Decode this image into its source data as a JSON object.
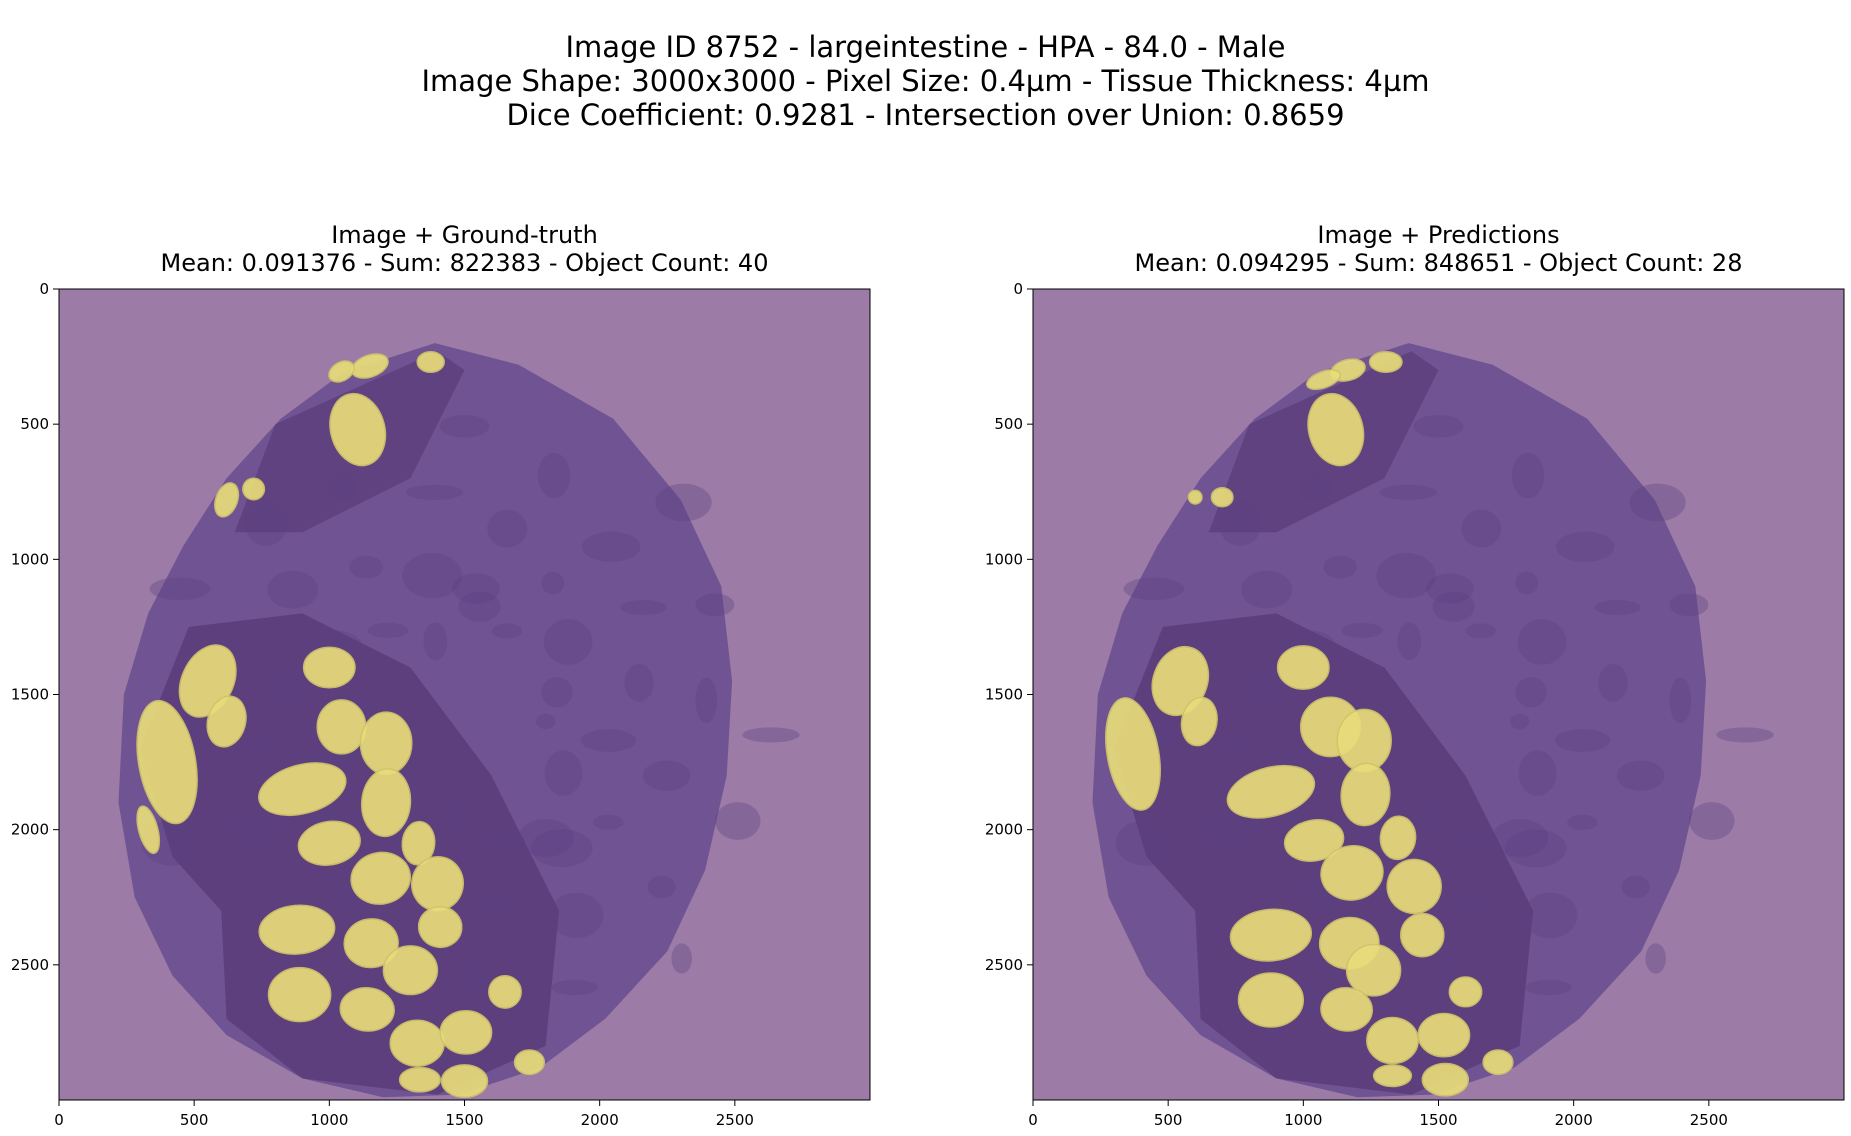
{
  "figure": {
    "title_lines": [
      "Image ID 8752 - largeintestine - HPA - 84.0 - Male",
      "Image Shape: 3000x3000 - Pixel Size: 0.4µm - Tissue Thickness: 4µm",
      "Dice Coefficient: 0.9281 - Intersection over Union: 0.8659"
    ]
  },
  "panels": [
    {
      "title_line1": "Image + Ground-truth",
      "title_line2": "Mean: 0.091376 - Sum: 822383 - Object Count: 40"
    },
    {
      "title_line1": "Image + Predictions",
      "title_line2": "Mean: 0.094295 - Sum: 848651 - Object Count: 28"
    }
  ],
  "axes": {
    "x_ticks": [
      "0",
      "500",
      "1000",
      "1500",
      "2000",
      "2500"
    ],
    "y_ticks": [
      "0",
      "500",
      "1000",
      "1500",
      "2000",
      "2500"
    ],
    "x_tick_values": [
      0,
      500,
      1000,
      1500,
      2000,
      2500
    ],
    "y_tick_values": [
      0,
      500,
      1000,
      1500,
      2000,
      2500
    ],
    "extent": [
      0,
      3000
    ]
  },
  "colors": {
    "background_overlay": "#9c7ba6",
    "tissue": "#6c4f90",
    "tissue_dense": "#4e2f6b",
    "mask": "#e8dc7a",
    "mask_edge": "#cfc46a"
  }
}
